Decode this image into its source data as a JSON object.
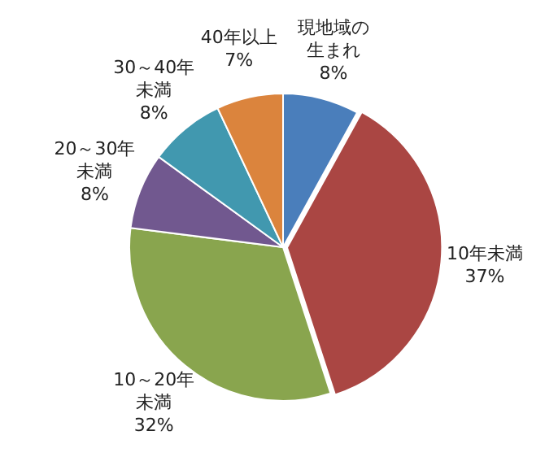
{
  "chart_data": {
    "type": "pie",
    "categories": [
      "現地域の生まれ",
      "10年未満",
      "10～20年未満",
      "20～30年未満",
      "30～40年未満",
      "40年以上"
    ],
    "values": [
      8,
      37,
      32,
      8,
      8,
      7
    ],
    "colors": [
      "#4a7ebb",
      "#aa4643",
      "#89a54e",
      "#71588f",
      "#4198af",
      "#db843d"
    ],
    "value_labels": [
      "8%",
      "37%",
      "32%",
      "8%",
      "8%",
      "7%"
    ],
    "legend": false
  }
}
